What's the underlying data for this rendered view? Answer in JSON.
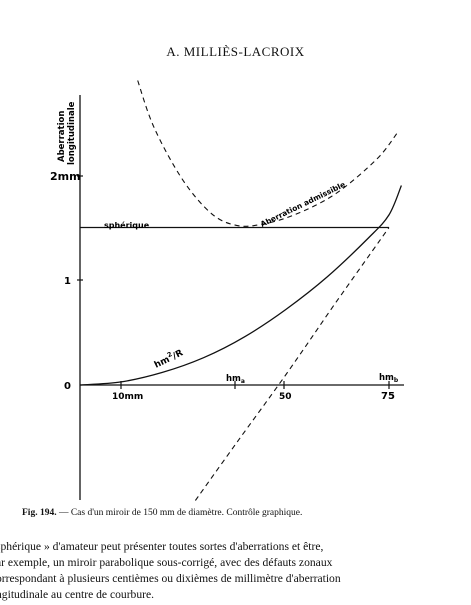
{
  "header": {
    "running_title": "A. MILLIÈS-LACROIX"
  },
  "chart_data": {
    "type": "line",
    "title": "",
    "ylabel_line1": "Aberration",
    "ylabel_line2": "longitudinale",
    "y_unit_tick": "2mm",
    "y_ticks": [
      "0",
      "1"
    ],
    "x_ticks": [
      "10mm",
      "50",
      "75"
    ],
    "x_markers": [
      {
        "label": "hm",
        "sub": "a"
      },
      {
        "label": "hm",
        "sub": "b"
      }
    ],
    "series": [
      {
        "name": "sphérique",
        "style": "solid",
        "points": [
          [
            0,
            1.5
          ],
          [
            75,
            1.5
          ]
        ]
      },
      {
        "name": "Aberration admissible",
        "style": "dashed",
        "points": [
          [
            14,
            2.9
          ],
          [
            18,
            2.45
          ],
          [
            25,
            1.95
          ],
          [
            32,
            1.63
          ],
          [
            38,
            1.52
          ],
          [
            44,
            1.53
          ],
          [
            52,
            1.62
          ],
          [
            62,
            1.82
          ],
          [
            72,
            2.15
          ],
          [
            77,
            2.4
          ]
        ]
      },
      {
        "name": "hm2/R",
        "style": "solid",
        "points": [
          [
            0,
            0
          ],
          [
            10,
            0.03
          ],
          [
            20,
            0.12
          ],
          [
            30,
            0.26
          ],
          [
            40,
            0.46
          ],
          [
            50,
            0.72
          ],
          [
            60,
            1.03
          ],
          [
            70,
            1.4
          ],
          [
            75,
            1.62
          ],
          [
            78,
            1.9
          ]
        ]
      },
      {
        "name": "",
        "style": "dashed",
        "points": [
          [
            28,
            -1.1
          ],
          [
            38,
            -0.55
          ],
          [
            50,
            0.1
          ],
          [
            62,
            0.78
          ],
          [
            75,
            1.5
          ]
        ]
      }
    ],
    "curve_labels": {
      "spherique": "sphérique",
      "admissible": "Aberration admissible",
      "hm": "hm",
      "hm_exp": "2",
      "hm_slash": "/R"
    }
  },
  "caption": {
    "fig": "Fig. 194.",
    "text": "— Cas d'un miroir de 150 mm de diamètre. Contrôle graphique."
  },
  "body": {
    "lines": [
      "sphérique » d'amateur peut présenter toutes sortes d'aberrations et être,",
      "ar exemple, un miroir parabolique sous-corrigé, avec des défauts zonaux",
      "orrespondant à plusieurs centièmes ou dixièmes de millimètre d'aberration",
      "ngitudinale au centre de courbure."
    ]
  }
}
